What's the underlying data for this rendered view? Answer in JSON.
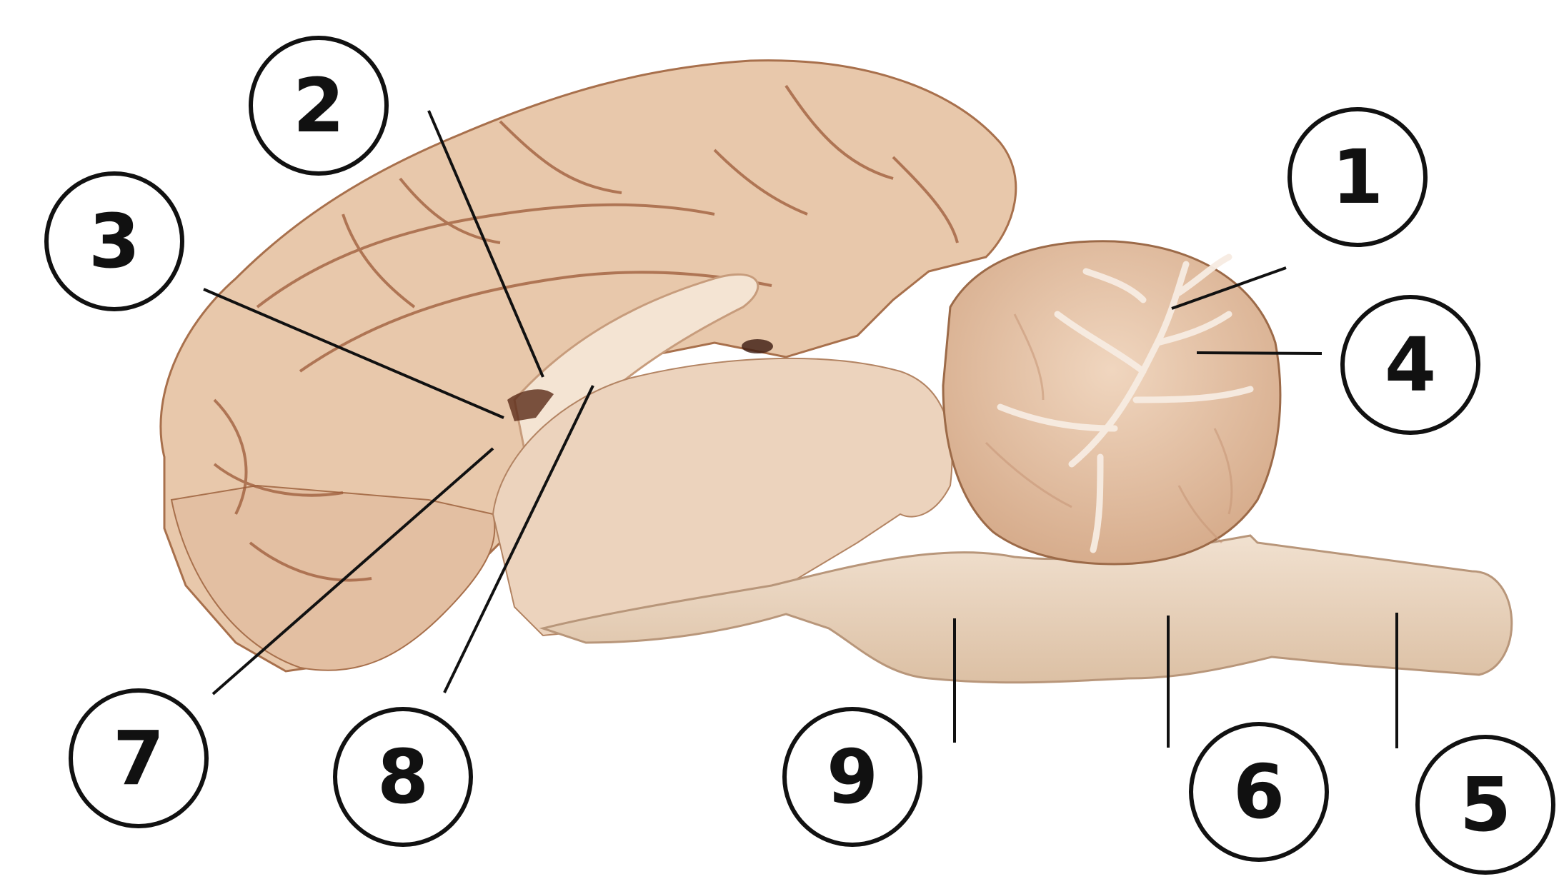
{
  "image": {
    "subject": "sagittal-brain-section",
    "background_color": "#ffffff",
    "tissue_color": "#e9c9ad",
    "tissue_shadow_color": "#b07a57",
    "vessel_color": "#8a3b22",
    "white_matter_color": "#f3e6d8",
    "label_stroke_color": "#111111"
  },
  "labels": [
    {
      "id": "1",
      "text": "1"
    },
    {
      "id": "2",
      "text": "2"
    },
    {
      "id": "3",
      "text": "3"
    },
    {
      "id": "4",
      "text": "4"
    },
    {
      "id": "5",
      "text": "5"
    },
    {
      "id": "6",
      "text": "6"
    },
    {
      "id": "7",
      "text": "7"
    },
    {
      "id": "8",
      "text": "8"
    },
    {
      "id": "9",
      "text": "9"
    }
  ]
}
